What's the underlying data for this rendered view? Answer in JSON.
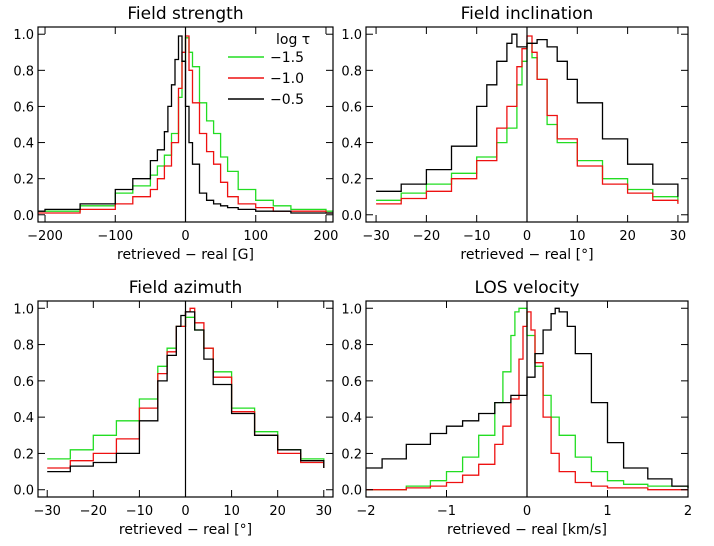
{
  "colors": {
    "-1.5": "#22dd22",
    "-1.0": "#ee1111",
    "-0.5": "#000000"
  },
  "legend": {
    "title": "log τ",
    "entries": [
      "−1.5",
      "−1.0",
      "−0.5"
    ]
  },
  "chart_data": [
    {
      "type": "line",
      "title": "Field strength",
      "xlabel": "retrieved − real [G]",
      "xlim": [
        -210,
        210
      ],
      "ylim": [
        -0.04,
        1.04
      ],
      "xticks": [
        -200,
        -100,
        0,
        100,
        200
      ],
      "xtick_labels": [
        "−200",
        "−100",
        "0",
        "100",
        "200"
      ],
      "yticks": [
        0,
        0.2,
        0.4,
        0.6,
        0.8,
        1.0
      ],
      "ytick_labels": [
        "0.0",
        "0.2",
        "0.4",
        "0.6",
        "0.8",
        "1.0"
      ],
      "vline": 0,
      "series": [
        {
          "name": "−1.5",
          "color": "#22dd22",
          "x": [
            -210,
            -200,
            -150,
            -100,
            -75,
            -50,
            -40,
            -30,
            -20,
            -10,
            -5,
            0,
            5,
            10,
            20,
            30,
            40,
            50,
            60,
            75,
            100,
            125,
            150,
            200,
            210
          ],
          "y": [
            0.02,
            0.02,
            0.05,
            0.12,
            0.16,
            0.22,
            0.27,
            0.33,
            0.45,
            0.65,
            0.85,
            0.98,
            0.9,
            0.82,
            0.62,
            0.52,
            0.45,
            0.32,
            0.24,
            0.14,
            0.08,
            0.05,
            0.03,
            0.02,
            0.02
          ]
        },
        {
          "name": "−1.0",
          "color": "#ee1111",
          "x": [
            -210,
            -200,
            -150,
            -100,
            -75,
            -50,
            -40,
            -30,
            -20,
            -10,
            -5,
            0,
            5,
            10,
            20,
            30,
            40,
            50,
            60,
            75,
            100,
            125,
            150,
            200,
            210
          ],
          "y": [
            0.01,
            0.01,
            0.03,
            0.06,
            0.1,
            0.14,
            0.2,
            0.27,
            0.4,
            0.7,
            0.9,
            0.99,
            0.8,
            0.62,
            0.45,
            0.35,
            0.28,
            0.18,
            0.1,
            0.06,
            0.04,
            0.02,
            0.02,
            0.01,
            0.01
          ]
        },
        {
          "name": "−0.5",
          "color": "#000000",
          "x": [
            -210,
            -200,
            -150,
            -100,
            -75,
            -50,
            -40,
            -30,
            -25,
            -20,
            -15,
            -10,
            -5,
            0,
            5,
            10,
            20,
            30,
            40,
            50,
            60,
            75,
            100,
            150,
            200,
            210
          ],
          "y": [
            0.02,
            0.03,
            0.06,
            0.14,
            0.2,
            0.3,
            0.36,
            0.46,
            0.6,
            0.72,
            0.86,
            0.99,
            0.85,
            0.6,
            0.4,
            0.28,
            0.12,
            0.08,
            0.06,
            0.05,
            0.04,
            0.03,
            0.02,
            0.01,
            0.01,
            0.01
          ]
        }
      ]
    },
    {
      "type": "line",
      "title": "Field inclination",
      "xlabel": "retrieved − real [°]",
      "xlim": [
        -32,
        32
      ],
      "ylim": [
        -0.04,
        1.04
      ],
      "xticks": [
        -30,
        -20,
        -10,
        0,
        10,
        20,
        30
      ],
      "xtick_labels": [
        "−30",
        "−20",
        "−10",
        "0",
        "10",
        "20",
        "30"
      ],
      "yticks": [
        0,
        0.2,
        0.4,
        0.6,
        0.8,
        1.0
      ],
      "ytick_labels": [
        "0.0",
        "0.2",
        "0.4",
        "0.6",
        "0.8",
        "1.0"
      ],
      "vline": 0,
      "series": [
        {
          "name": "−1.5",
          "color": "#22dd22",
          "x": [
            -30,
            -25,
            -20,
            -15,
            -10,
            -6,
            -4,
            -2,
            -1,
            0,
            1,
            2,
            4,
            6,
            10,
            15,
            20,
            25,
            30
          ],
          "y": [
            0.08,
            0.12,
            0.17,
            0.23,
            0.32,
            0.4,
            0.48,
            0.72,
            0.85,
            0.95,
            0.87,
            0.75,
            0.5,
            0.4,
            0.3,
            0.2,
            0.14,
            0.1,
            0.07
          ]
        },
        {
          "name": "−1.0",
          "color": "#ee1111",
          "x": [
            -30,
            -25,
            -20,
            -15,
            -10,
            -6,
            -4,
            -2,
            -1,
            0,
            1,
            2,
            4,
            6,
            10,
            15,
            20,
            25,
            30
          ],
          "y": [
            0.06,
            0.09,
            0.13,
            0.2,
            0.3,
            0.48,
            0.6,
            0.82,
            0.92,
            0.99,
            0.9,
            0.75,
            0.55,
            0.42,
            0.27,
            0.17,
            0.12,
            0.08,
            0.06
          ]
        },
        {
          "name": "−0.5",
          "color": "#000000",
          "x": [
            -30,
            -25,
            -20,
            -15,
            -10,
            -8,
            -6,
            -4,
            -3,
            -2,
            0,
            2,
            4,
            6,
            8,
            10,
            15,
            20,
            25,
            30
          ],
          "y": [
            0.13,
            0.17,
            0.25,
            0.38,
            0.6,
            0.72,
            0.85,
            0.95,
            1.0,
            0.93,
            0.95,
            0.97,
            0.93,
            0.85,
            0.75,
            0.62,
            0.42,
            0.28,
            0.17,
            0.1
          ]
        }
      ]
    },
    {
      "type": "line",
      "title": "Field azimuth",
      "xlabel": "retrieved − real [°]",
      "xlim": [
        -32,
        32
      ],
      "ylim": [
        -0.04,
        1.04
      ],
      "xticks": [
        -30,
        -20,
        -10,
        0,
        10,
        20,
        30
      ],
      "xtick_labels": [
        "−30",
        "−20",
        "−10",
        "0",
        "10",
        "20",
        "30"
      ],
      "yticks": [
        0,
        0.2,
        0.4,
        0.6,
        0.8,
        1.0
      ],
      "ytick_labels": [
        "0.0",
        "0.2",
        "0.4",
        "0.6",
        "0.8",
        "1.0"
      ],
      "vline": 0,
      "series": [
        {
          "name": "−1.5",
          "color": "#22dd22",
          "x": [
            -30,
            -25,
            -20,
            -15,
            -10,
            -6,
            -4,
            -2,
            0,
            2,
            4,
            6,
            10,
            15,
            20,
            25,
            30
          ],
          "y": [
            0.17,
            0.22,
            0.3,
            0.38,
            0.5,
            0.68,
            0.78,
            0.9,
            0.95,
            0.88,
            0.78,
            0.65,
            0.45,
            0.32,
            0.22,
            0.17,
            0.12
          ]
        },
        {
          "name": "−1.0",
          "color": "#ee1111",
          "x": [
            -30,
            -25,
            -20,
            -15,
            -10,
            -6,
            -4,
            -2,
            0,
            1,
            2,
            4,
            6,
            10,
            15,
            20,
            25,
            30
          ],
          "y": [
            0.12,
            0.16,
            0.2,
            0.28,
            0.45,
            0.64,
            0.76,
            0.9,
            0.98,
            1.0,
            0.92,
            0.78,
            0.62,
            0.43,
            0.3,
            0.2,
            0.15,
            0.12
          ]
        },
        {
          "name": "−0.5",
          "color": "#000000",
          "x": [
            -30,
            -25,
            -20,
            -15,
            -10,
            -6,
            -4,
            -2,
            -1,
            0,
            2,
            4,
            6,
            10,
            15,
            20,
            25,
            30
          ],
          "y": [
            0.1,
            0.13,
            0.15,
            0.2,
            0.38,
            0.6,
            0.74,
            0.9,
            0.96,
            0.98,
            0.88,
            0.72,
            0.58,
            0.42,
            0.3,
            0.22,
            0.16,
            0.12
          ]
        }
      ]
    },
    {
      "type": "line",
      "title": "LOS velocity",
      "xlabel": "retrieved − real [km/s]",
      "xlim": [
        -2,
        2
      ],
      "ylim": [
        -0.04,
        1.04
      ],
      "xticks": [
        -2,
        -1,
        0,
        1,
        2
      ],
      "xtick_labels": [
        "−2",
        "−1",
        "0",
        "1",
        "2"
      ],
      "yticks": [
        0,
        0.2,
        0.4,
        0.6,
        0.8,
        1.0
      ],
      "ytick_labels": [
        "0.0",
        "0.2",
        "0.4",
        "0.6",
        "0.8",
        "1.0"
      ],
      "vline": 0,
      "series": [
        {
          "name": "−1.5",
          "color": "#22dd22",
          "x": [
            -2,
            -1.5,
            -1.2,
            -1,
            -0.8,
            -0.6,
            -0.4,
            -0.3,
            -0.2,
            -0.15,
            -0.1,
            0,
            0.1,
            0.2,
            0.3,
            0.4,
            0.6,
            0.8,
            1,
            1.2,
            1.5,
            2
          ],
          "y": [
            0,
            0.02,
            0.05,
            0.1,
            0.18,
            0.3,
            0.48,
            0.65,
            0.85,
            0.98,
            1.0,
            0.85,
            0.68,
            0.52,
            0.4,
            0.3,
            0.18,
            0.1,
            0.05,
            0.03,
            0.02,
            0.01
          ]
        },
        {
          "name": "−1.0",
          "color": "#ee1111",
          "x": [
            -2,
            -1.5,
            -1.2,
            -1,
            -0.8,
            -0.6,
            -0.4,
            -0.3,
            -0.2,
            -0.1,
            -0.05,
            0,
            0.05,
            0.1,
            0.2,
            0.3,
            0.4,
            0.6,
            0.8,
            1,
            1.5,
            2
          ],
          "y": [
            0,
            0.01,
            0.02,
            0.04,
            0.08,
            0.14,
            0.25,
            0.35,
            0.5,
            0.72,
            0.9,
            0.98,
            0.88,
            0.7,
            0.4,
            0.2,
            0.1,
            0.04,
            0.02,
            0.01,
            0,
            0
          ]
        },
        {
          "name": "−0.5",
          "color": "#000000",
          "x": [
            -2,
            -1.8,
            -1.5,
            -1.2,
            -1,
            -0.8,
            -0.6,
            -0.4,
            -0.2,
            0,
            0.1,
            0.2,
            0.3,
            0.35,
            0.4,
            0.5,
            0.6,
            0.8,
            1,
            1.2,
            1.5,
            1.8,
            2
          ],
          "y": [
            0.12,
            0.17,
            0.25,
            0.31,
            0.35,
            0.38,
            0.42,
            0.48,
            0.52,
            0.62,
            0.75,
            0.88,
            0.97,
            1.0,
            0.98,
            0.9,
            0.75,
            0.48,
            0.26,
            0.12,
            0.06,
            0.02,
            0.01
          ]
        }
      ]
    }
  ]
}
